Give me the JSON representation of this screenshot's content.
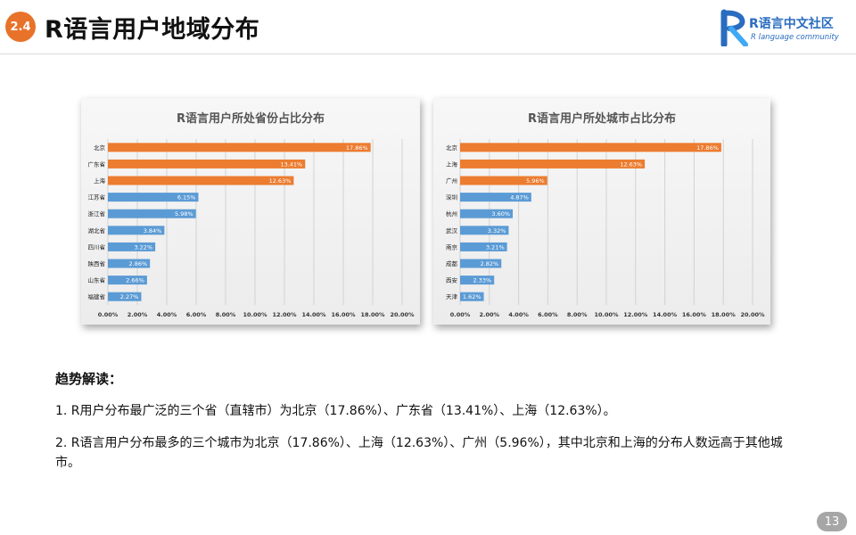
{
  "header": {
    "section_number": "2.4",
    "title": "R语言用户地域分布",
    "logo_text_cn": "R语言中文社区",
    "logo_text_en": "R language community"
  },
  "colors": {
    "accent_orange": "#e8722a",
    "bar_orange": "#ec7c30",
    "bar_blue": "#5b9bd5",
    "logo_blue": "#2a6cc0"
  },
  "chart_data": [
    {
      "type": "bar",
      "orientation": "horizontal",
      "title": "R语言用户所处省份占比分布",
      "categories": [
        "北京",
        "广东省",
        "上海",
        "江苏省",
        "浙江省",
        "湖北省",
        "四川省",
        "陕西省",
        "山东省",
        "福建省"
      ],
      "values": [
        17.86,
        13.41,
        12.63,
        6.15,
        5.98,
        3.84,
        3.22,
        2.86,
        2.66,
        2.27
      ],
      "value_labels": [
        "17.86%",
        "13.41%",
        "12.63%",
        "6.15%",
        "5.98%",
        "3.84%",
        "3.22%",
        "2.86%",
        "2.66%",
        "2.27%"
      ],
      "highlight_top": 3,
      "xlim": [
        0,
        20
      ],
      "xticks": [
        "0.00%",
        "2.00%",
        "4.00%",
        "6.00%",
        "8.00%",
        "10.00%",
        "12.00%",
        "14.00%",
        "16.00%",
        "18.00%",
        "20.00%"
      ],
      "grid": true
    },
    {
      "type": "bar",
      "orientation": "horizontal",
      "title": "R语言用户所处城市占比分布",
      "categories": [
        "北京",
        "上海",
        "广州",
        "深圳",
        "杭州",
        "武汉",
        "南京",
        "成都",
        "西安",
        "天津"
      ],
      "values": [
        17.86,
        12.63,
        5.96,
        4.87,
        3.6,
        3.32,
        3.21,
        2.82,
        2.33,
        1.62
      ],
      "value_labels": [
        "17.86%",
        "12.63%",
        "5.96%",
        "4.87%",
        "3.60%",
        "3.32%",
        "3.21%",
        "2.82%",
        "2.33%",
        "1.62%"
      ],
      "highlight_top": 3,
      "xlim": [
        0,
        20
      ],
      "xticks": [
        "0.00%",
        "2.00%",
        "4.00%",
        "6.00%",
        "8.00%",
        "10.00%",
        "12.00%",
        "14.00%",
        "16.00%",
        "18.00%",
        "20.00%"
      ],
      "grid": true
    }
  ],
  "analysis": {
    "heading": "趋势解读：",
    "points": [
      "1. R用户分布最广泛的三个省（直辖市）为北京（17.86%）、广东省（13.41%）、上海（12.63%）。",
      "2.  R语言用户分布最多的三个城市为北京（17.86%）、上海（12.63%）、广州（5.96%），其中北京和上海的分布人数远高于其他城市。"
    ]
  },
  "footer": {
    "page_number": "13"
  }
}
